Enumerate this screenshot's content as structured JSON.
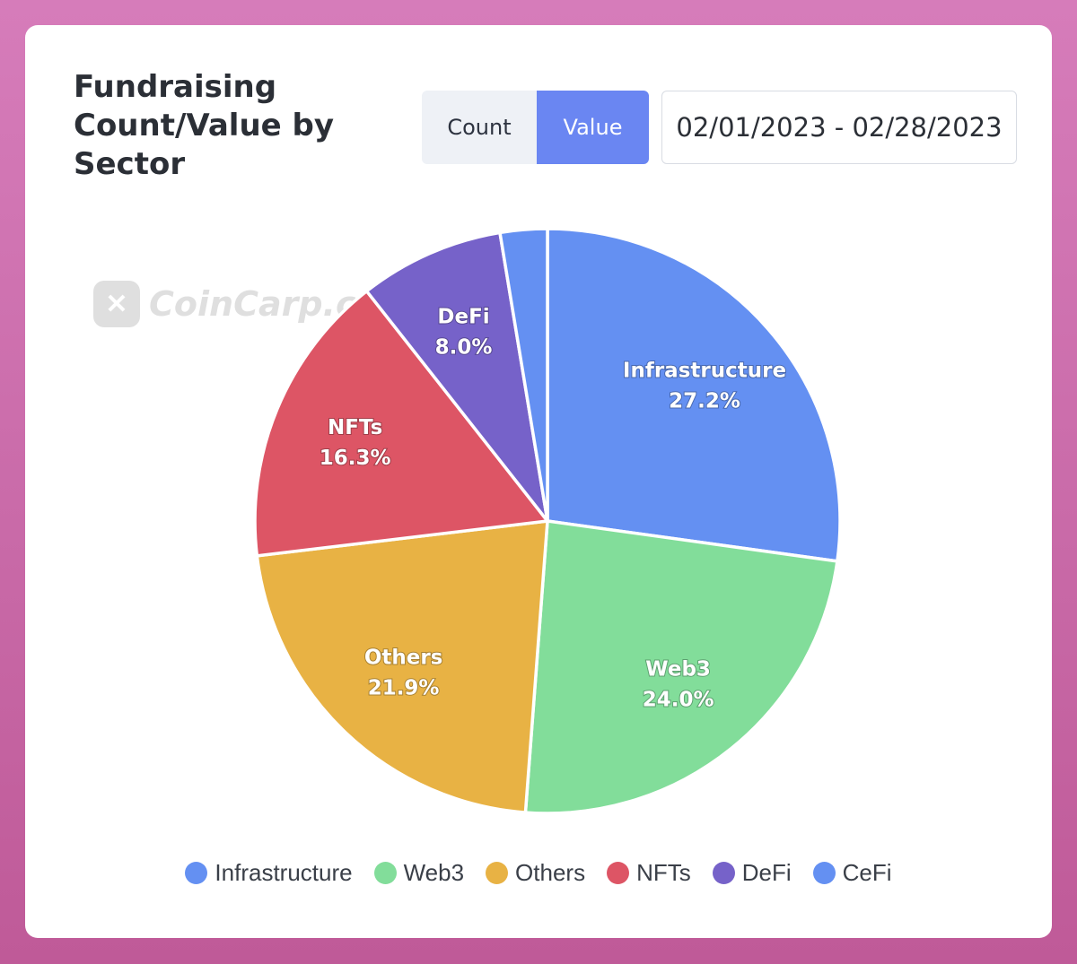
{
  "title": "Fundraising Count/Value by Sector",
  "toggle": {
    "count_label": "Count",
    "value_label": "Value",
    "active": "Value"
  },
  "date_range": "02/01/2023 - 02/28/2023",
  "watermark": {
    "text": "CoinCarp.com"
  },
  "colors": {
    "card_background": "#ffffff",
    "toggle_active": "#6a86f2",
    "toggle_inactive": "#eef1f6"
  },
  "chart_data": {
    "type": "pie",
    "title": "",
    "slices": [
      {
        "name": "Infrastructure",
        "value": 27.2,
        "label": "27.2%",
        "color": "#6490f2"
      },
      {
        "name": "Web3",
        "value": 24.0,
        "label": "24.0%",
        "color": "#82dd9a"
      },
      {
        "name": "Others",
        "value": 21.9,
        "label": "21.9%",
        "color": "#e8b244"
      },
      {
        "name": "NFTs",
        "value": 16.3,
        "label": "16.3%",
        "color": "#dd5565"
      },
      {
        "name": "DeFi",
        "value": 8.0,
        "label": "8.0%",
        "color": "#7662c9"
      },
      {
        "name": "CeFi",
        "value": 2.6,
        "label": "",
        "color": "#6490f2"
      }
    ],
    "legend_position": "bottom"
  }
}
